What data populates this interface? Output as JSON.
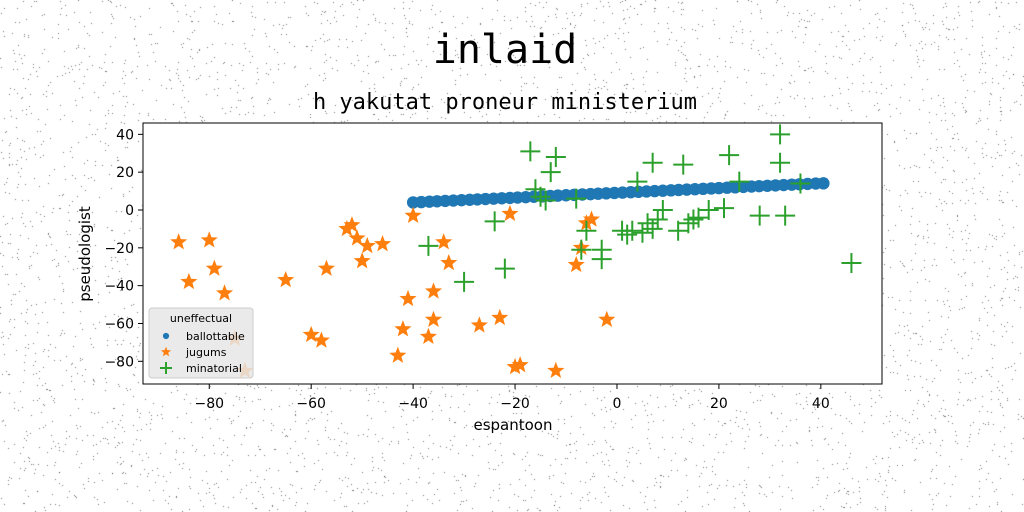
{
  "chart_data": {
    "type": "scatter",
    "title": "inlaid",
    "subtitle": "h yakutat proneur ministerium",
    "xlabel": "espantoon",
    "ylabel": "pseudologist",
    "xlim": [
      -93,
      52
    ],
    "ylim": [
      -92,
      46
    ],
    "xticks": [
      -80,
      -60,
      -40,
      -20,
      0,
      20,
      40
    ],
    "yticks": [
      40,
      20,
      0,
      -20,
      -40,
      -60,
      -80
    ],
    "grid": false,
    "legend": {
      "title": "uneffectual",
      "placement": "lower-left"
    },
    "series": [
      {
        "name": "ballottable",
        "marker": "circle",
        "color": "#1f77b4",
        "x": [
          -40.0,
          -38.4,
          -36.8,
          -35.3,
          -33.7,
          -32.1,
          -30.5,
          -28.9,
          -27.4,
          -25.8,
          -24.2,
          -22.6,
          -21.0,
          -19.5,
          -17.9,
          -16.3,
          -14.7,
          -13.1,
          -11.6,
          -10.0,
          -8.4,
          -6.8,
          -5.2,
          -3.7,
          -2.1,
          -0.5,
          1.1,
          2.7,
          4.2,
          5.8,
          7.4,
          9.0,
          10.6,
          12.1,
          13.7,
          15.3,
          16.9,
          18.5,
          20.0,
          21.6,
          23.2,
          24.8,
          26.4,
          27.9,
          29.5,
          31.1,
          32.7,
          34.3,
          35.8,
          37.4,
          39.0,
          40.5
        ],
        "y": [
          4.0,
          4.2,
          4.4,
          4.6,
          4.8,
          5.0,
          5.2,
          5.4,
          5.6,
          5.8,
          6.0,
          6.2,
          6.4,
          6.6,
          6.8,
          7.0,
          7.2,
          7.4,
          7.6,
          7.8,
          8.0,
          8.2,
          8.4,
          8.6,
          8.8,
          9.0,
          9.2,
          9.4,
          9.6,
          9.8,
          10.0,
          10.2,
          10.4,
          10.6,
          10.8,
          11.0,
          11.2,
          11.4,
          11.6,
          11.8,
          12.0,
          12.2,
          12.4,
          12.6,
          12.8,
          13.0,
          13.2,
          13.4,
          13.6,
          13.8,
          14.0,
          14.1
        ]
      },
      {
        "name": "jugums",
        "marker": "star",
        "color": "#ff7f0e",
        "x": [
          -86,
          -84,
          -80,
          -79,
          -77,
          -75,
          -73,
          -65,
          -60,
          -58,
          -57,
          -53,
          -52,
          -51,
          -50,
          -49,
          -46,
          -43,
          -42,
          -41,
          -40,
          -37,
          -36,
          -36,
          -34,
          -33,
          -27,
          -23,
          -21,
          -20,
          -19,
          -12,
          -8,
          -7,
          -6,
          -5,
          -2
        ],
        "y": [
          -17,
          -38,
          -16,
          -31,
          -44,
          -68,
          -85,
          -37,
          -66,
          -69,
          -31,
          -10,
          -8,
          -15,
          -27,
          -19,
          -18,
          -77,
          -63,
          -47,
          -3,
          -67,
          -58,
          -43,
          -17,
          -28,
          -61,
          -57,
          -2,
          -83,
          -82,
          -85,
          -29,
          -20,
          -7,
          -5,
          -58
        ]
      },
      {
        "name": "minatorial",
        "marker": "plus",
        "color": "#2ca02c",
        "x": [
          -37,
          -30,
          -24,
          -22,
          -17,
          -16,
          -15,
          -14,
          -13,
          -12,
          -8,
          -7,
          -6,
          -3,
          -3,
          1,
          2,
          3,
          4,
          5,
          6,
          7,
          7,
          8,
          9,
          12,
          13,
          14,
          15,
          16,
          18,
          21,
          22,
          24,
          28,
          32,
          32,
          33,
          36,
          46
        ],
        "y": [
          -19,
          -38,
          -6,
          -31,
          31,
          11,
          7,
          5,
          20,
          28,
          6,
          -21,
          -11,
          -26,
          -21,
          -11,
          -13,
          -11,
          15,
          -12,
          -7,
          -10,
          25,
          -5,
          0,
          -11,
          24,
          -7,
          -5,
          -4,
          0,
          1,
          29,
          15,
          -3,
          40,
          25,
          -3,
          14,
          -28
        ]
      }
    ]
  }
}
